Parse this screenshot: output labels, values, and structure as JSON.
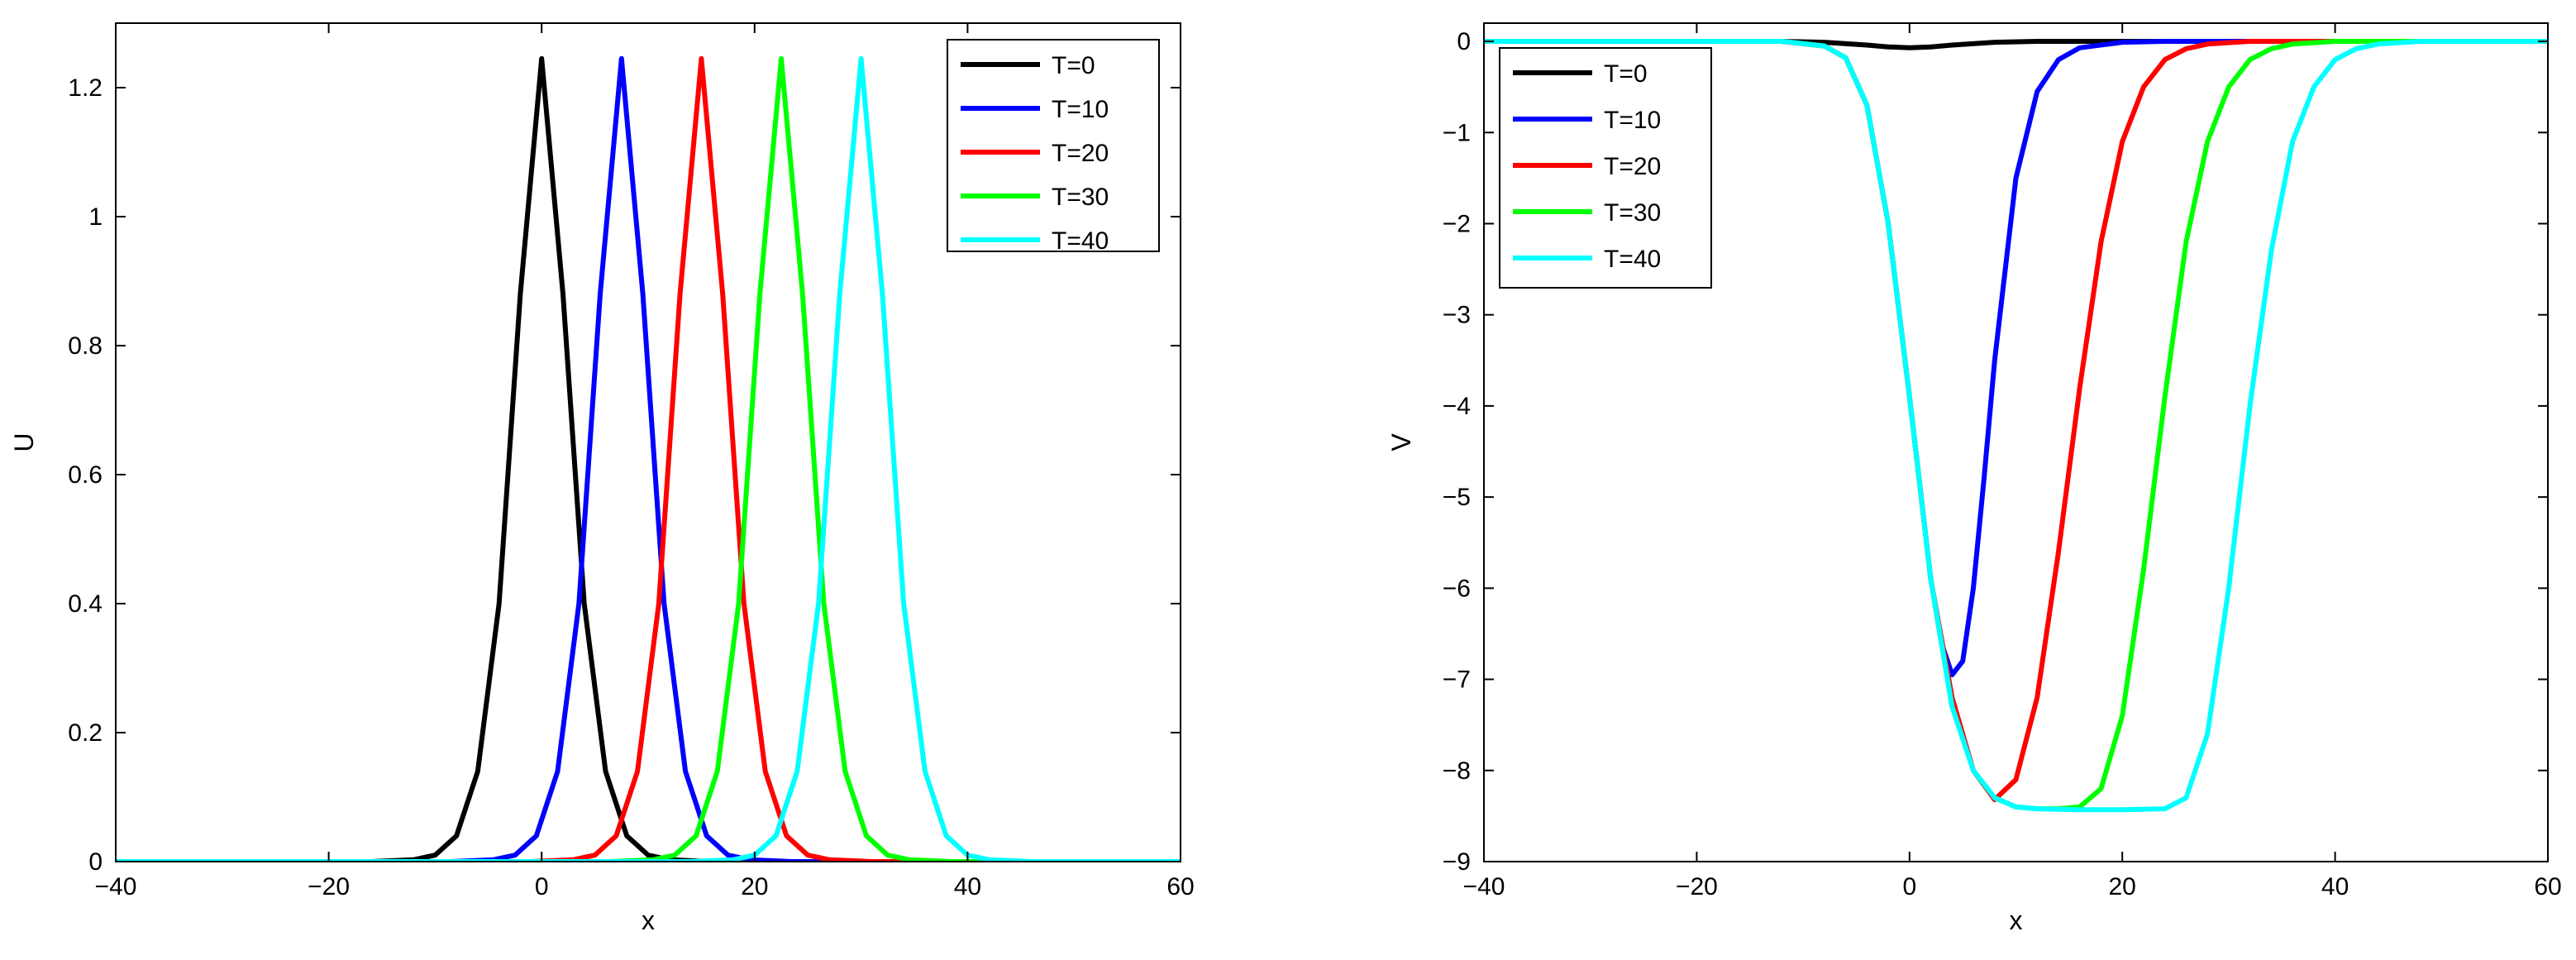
{
  "chart_data": [
    {
      "type": "line",
      "title": "",
      "xlabel": "x",
      "ylabel": "U",
      "xlim": [
        -40,
        60
      ],
      "ylim": [
        0,
        1.3
      ],
      "xticks": [
        -40,
        -20,
        0,
        20,
        40,
        60
      ],
      "xtick_labels": [
        "−40",
        "−20",
        "0",
        "20",
        "40",
        "60"
      ],
      "yticks": [
        0,
        0.2,
        0.4,
        0.6,
        0.8,
        1,
        1.2
      ],
      "ytick_labels": [
        "0",
        "0.2",
        "0.4",
        "0.6",
        "0.8",
        "1",
        "1.2"
      ],
      "grid": false,
      "legend_position": "top-right",
      "series": [
        {
          "name": "T=0",
          "color": "#000000",
          "x": [
            -40,
            -16,
            -12,
            -10,
            -8,
            -6,
            -4,
            -2,
            0,
            2,
            4,
            6,
            8,
            10,
            12,
            16,
            60
          ],
          "y": [
            0,
            0,
            0.003,
            0.01,
            0.04,
            0.14,
            0.4,
            0.88,
            1.245,
            0.88,
            0.4,
            0.14,
            0.04,
            0.01,
            0.003,
            0,
            0
          ]
        },
        {
          "name": "T=10",
          "color": "#0000ff",
          "x": [
            -40,
            -8.5,
            -4.5,
            -2.5,
            -0.5,
            1.5,
            3.5,
            5.5,
            7.5,
            9.5,
            11.5,
            13.5,
            15.5,
            17.5,
            19.5,
            23.5,
            60
          ],
          "y": [
            0,
            0,
            0.003,
            0.01,
            0.04,
            0.14,
            0.4,
            0.88,
            1.245,
            0.88,
            0.4,
            0.14,
            0.04,
            0.01,
            0.003,
            0,
            0
          ]
        },
        {
          "name": "T=20",
          "color": "#ff0000",
          "x": [
            -40,
            -1,
            3,
            5,
            7,
            9,
            11,
            13,
            15,
            17,
            19,
            21,
            23,
            25,
            27,
            31,
            60
          ],
          "y": [
            0,
            0,
            0.003,
            0.01,
            0.04,
            0.14,
            0.4,
            0.88,
            1.245,
            0.88,
            0.4,
            0.14,
            0.04,
            0.01,
            0.003,
            0,
            0
          ]
        },
        {
          "name": "T=30",
          "color": "#00ff00",
          "x": [
            -40,
            6.5,
            10.5,
            12.5,
            14.5,
            16.5,
            18.5,
            20.5,
            22.5,
            24.5,
            26.5,
            28.5,
            30.5,
            32.5,
            34.5,
            38.5,
            60
          ],
          "y": [
            0,
            0,
            0.003,
            0.01,
            0.04,
            0.14,
            0.4,
            0.88,
            1.245,
            0.88,
            0.4,
            0.14,
            0.04,
            0.01,
            0.003,
            0,
            0
          ]
        },
        {
          "name": "T=40",
          "color": "#00ffff",
          "x": [
            -40,
            14,
            18,
            20,
            22,
            24,
            26,
            28,
            30,
            32,
            34,
            36,
            38,
            40,
            42,
            46,
            60
          ],
          "y": [
            0,
            0,
            0.003,
            0.01,
            0.04,
            0.14,
            0.4,
            0.88,
            1.245,
            0.88,
            0.4,
            0.14,
            0.04,
            0.01,
            0.003,
            0,
            0
          ]
        }
      ]
    },
    {
      "type": "line",
      "title": "",
      "xlabel": "x",
      "ylabel": "V",
      "xlim": [
        -40,
        60
      ],
      "ylim": [
        -9,
        0.2
      ],
      "xticks": [
        -40,
        -20,
        0,
        20,
        40,
        60
      ],
      "xtick_labels": [
        "−40",
        "−20",
        "0",
        "20",
        "40",
        "60"
      ],
      "yticks": [
        0,
        -1,
        -2,
        -3,
        -4,
        -5,
        -6,
        -7,
        -8,
        -9
      ],
      "ytick_labels": [
        "0",
        "−1",
        "−2",
        "−3",
        "−4",
        "−5",
        "−6",
        "−7",
        "−8",
        "−9"
      ],
      "grid": false,
      "legend_position": "top-left",
      "series": [
        {
          "name": "T=0",
          "color": "#000000",
          "x": [
            -40,
            -12,
            -8,
            -4,
            -2,
            0,
            2,
            4,
            8,
            12,
            60
          ],
          "y": [
            0,
            0,
            -0.01,
            -0.04,
            -0.06,
            -0.07,
            -0.06,
            -0.04,
            -0.01,
            0,
            0
          ]
        },
        {
          "name": "T=10",
          "color": "#0000ff",
          "x": [
            -40,
            -12,
            -8,
            -6,
            -4,
            -2,
            0,
            1,
            2,
            3,
            4,
            5,
            6,
            7,
            8,
            10,
            12,
            14,
            16,
            20,
            24,
            60
          ],
          "y": [
            0,
            0,
            -0.05,
            -0.18,
            -0.7,
            -2.0,
            -3.9,
            -4.9,
            -5.9,
            -6.6,
            -6.95,
            -6.8,
            -6.0,
            -4.8,
            -3.5,
            -1.5,
            -0.55,
            -0.2,
            -0.07,
            -0.01,
            0,
            0
          ]
        },
        {
          "name": "T=20",
          "color": "#ff0000",
          "x": [
            -40,
            -12,
            -8,
            -6,
            -4,
            -2,
            0,
            2,
            4,
            6,
            8,
            10,
            12,
            14,
            16,
            18,
            20,
            22,
            24,
            26,
            28,
            32,
            60
          ],
          "y": [
            0,
            0,
            -0.05,
            -0.18,
            -0.7,
            -2.0,
            -3.9,
            -5.9,
            -7.2,
            -8.0,
            -8.32,
            -8.1,
            -7.2,
            -5.6,
            -3.8,
            -2.2,
            -1.1,
            -0.5,
            -0.2,
            -0.08,
            -0.03,
            0,
            0
          ]
        },
        {
          "name": "T=30",
          "color": "#00ff00",
          "x": [
            -40,
            -12,
            -8,
            -6,
            -4,
            -2,
            0,
            2,
            4,
            6,
            8,
            10,
            12,
            14,
            16,
            18,
            20,
            22,
            24,
            26,
            28,
            30,
            32,
            34,
            36,
            40,
            60
          ],
          "y": [
            0,
            0,
            -0.05,
            -0.18,
            -0.7,
            -2.0,
            -3.9,
            -5.9,
            -7.3,
            -8.0,
            -8.3,
            -8.4,
            -8.42,
            -8.42,
            -8.4,
            -8.2,
            -7.4,
            -5.8,
            -3.9,
            -2.2,
            -1.1,
            -0.5,
            -0.2,
            -0.08,
            -0.03,
            0,
            0
          ]
        },
        {
          "name": "T=40",
          "color": "#00ffff",
          "x": [
            -40,
            -12,
            -8,
            -6,
            -4,
            -2,
            0,
            2,
            4,
            6,
            8,
            10,
            12,
            16,
            20,
            24,
            26,
            28,
            30,
            32,
            34,
            36,
            38,
            40,
            42,
            44,
            48,
            60
          ],
          "y": [
            0,
            0,
            -0.05,
            -0.18,
            -0.7,
            -2.0,
            -3.9,
            -5.9,
            -7.3,
            -8.0,
            -8.3,
            -8.4,
            -8.42,
            -8.43,
            -8.43,
            -8.42,
            -8.3,
            -7.6,
            -6.0,
            -4.0,
            -2.3,
            -1.1,
            -0.5,
            -0.2,
            -0.08,
            -0.03,
            0,
            0
          ]
        }
      ]
    }
  ]
}
